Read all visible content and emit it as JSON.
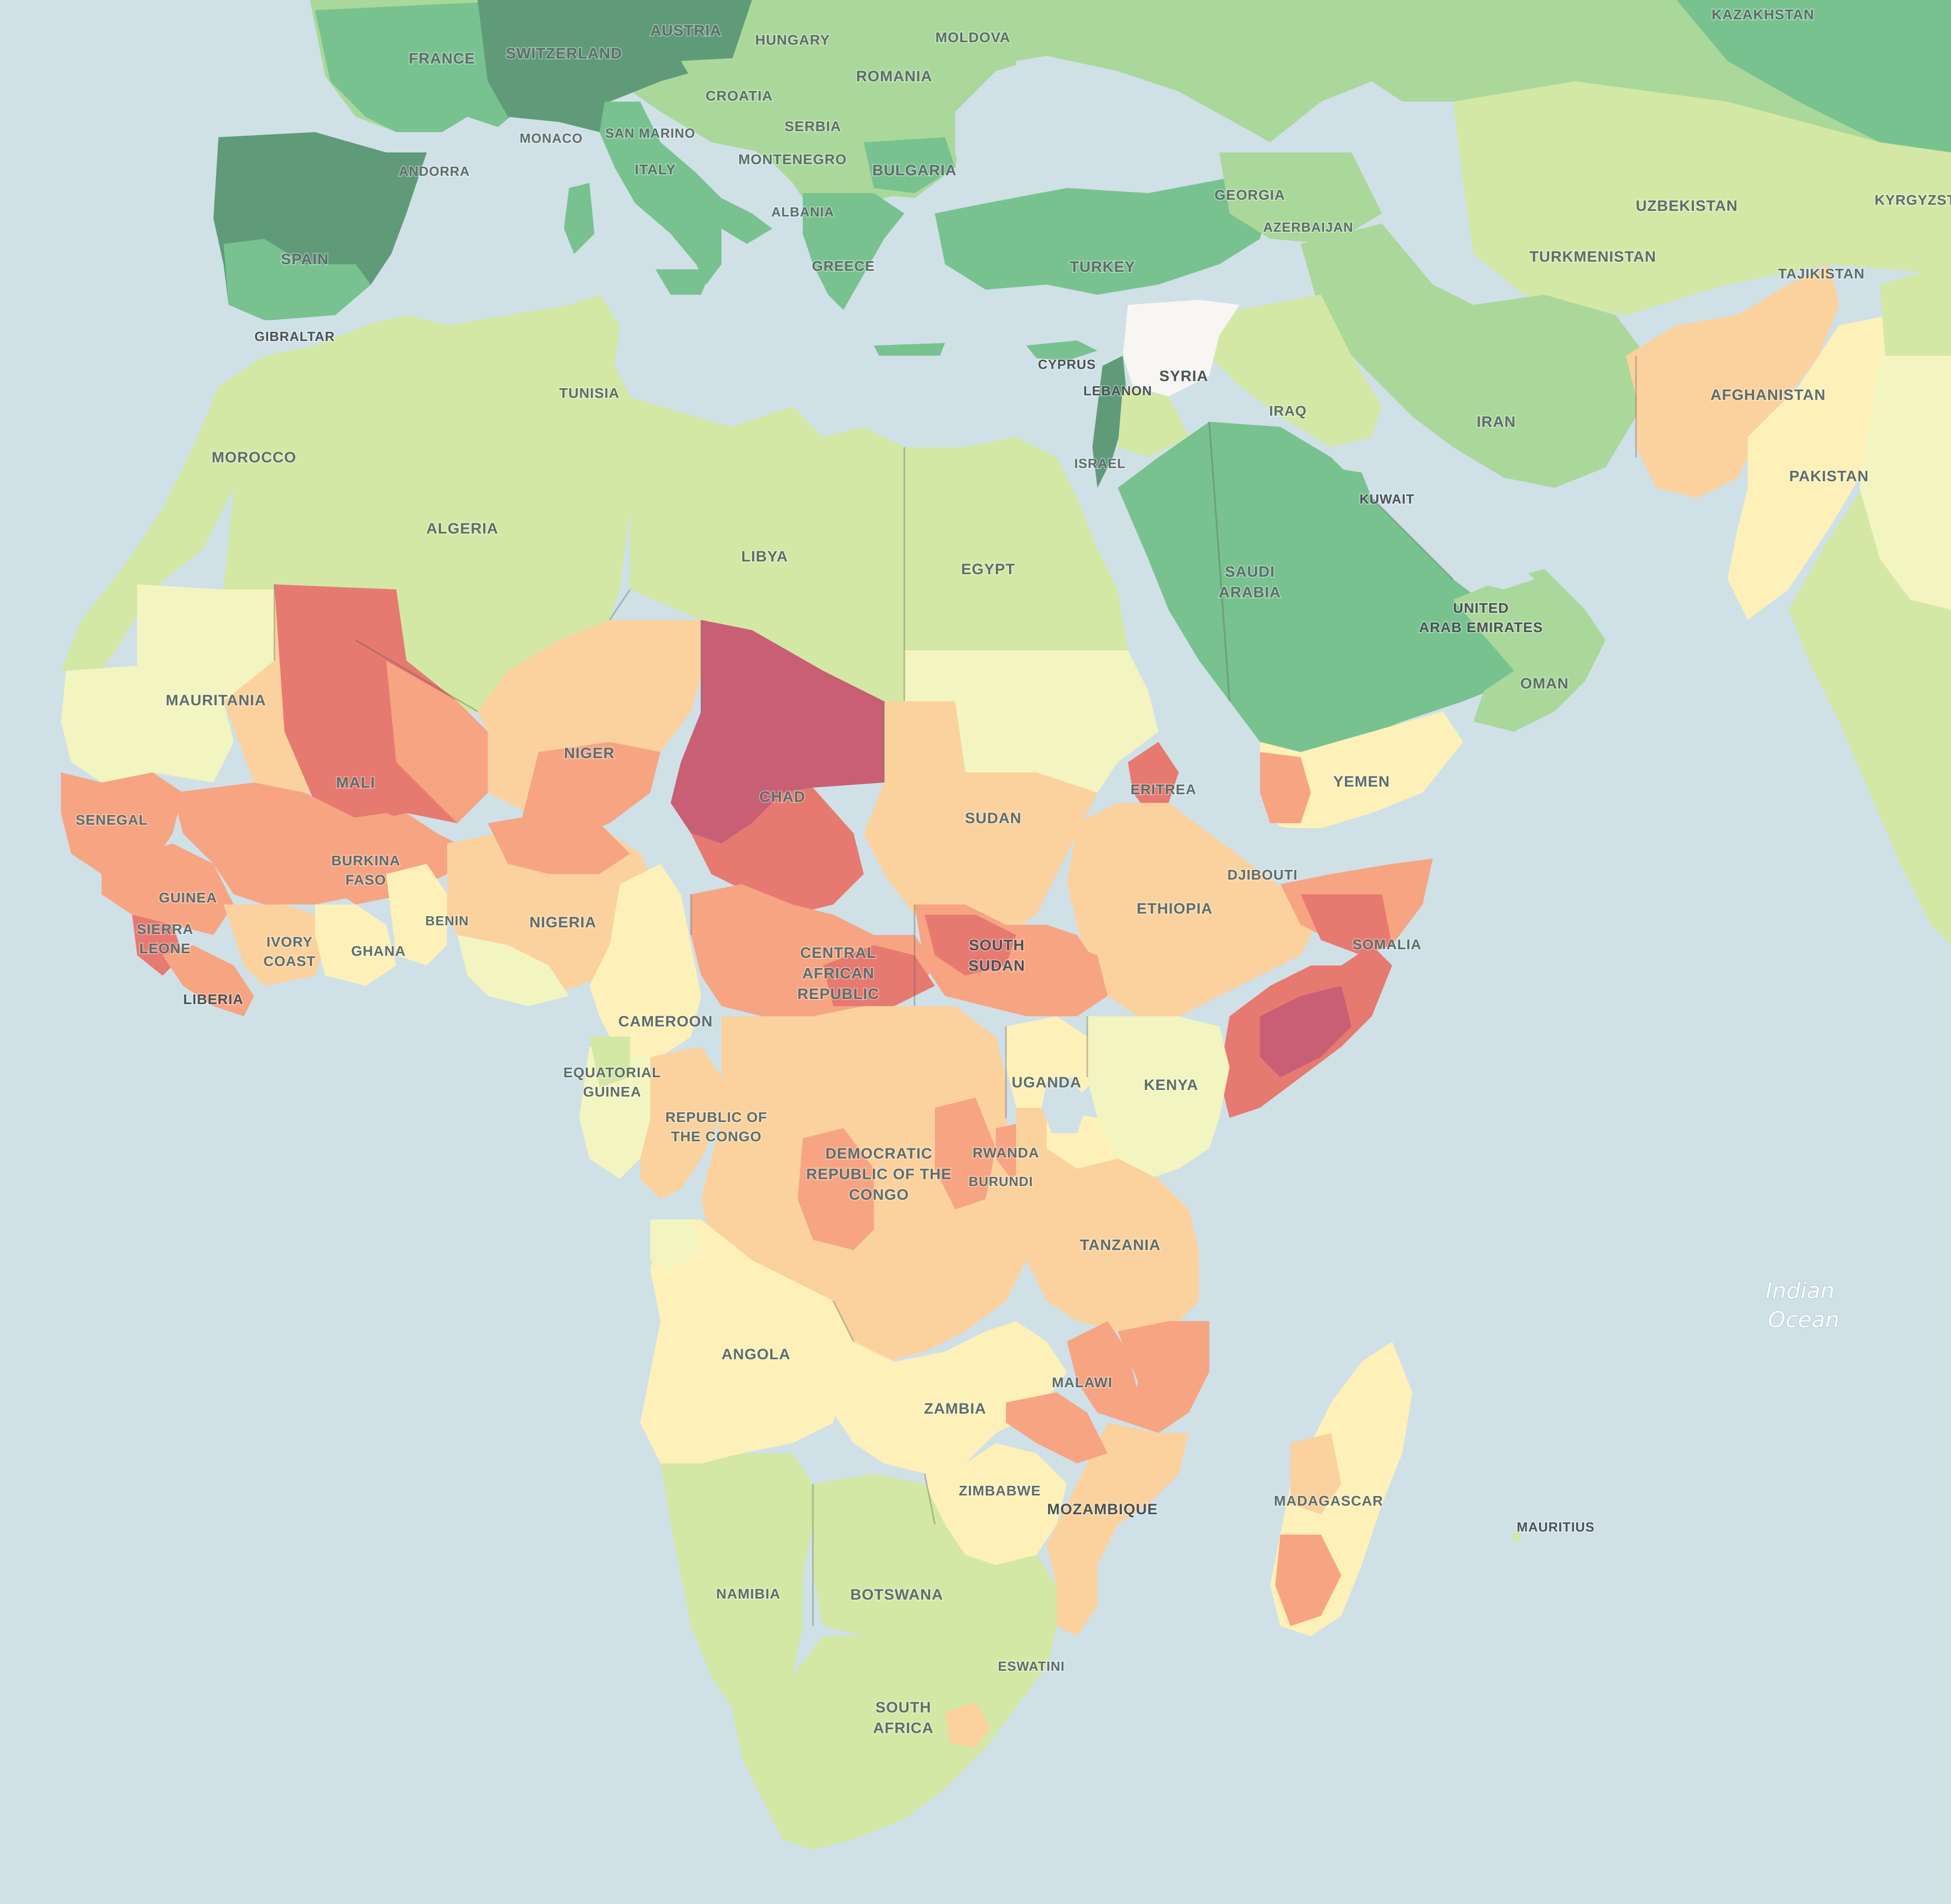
{
  "map": {
    "ocean_labels": [
      {
        "id": "indian-ocean",
        "lines": [
          "Indian",
          "Ocean"
        ]
      }
    ],
    "colors": {
      "water": "#cfe0e6",
      "dark_green": "#5f9a79",
      "green": "#78c28f",
      "mid_green": "#a9d89a",
      "light_green": "#d3e8a5",
      "pale_yellow": "#f3f5c0",
      "yellow": "#fdf0b9",
      "peach": "#fbd29e",
      "salmon": "#f7a482",
      "red": "#e67a70",
      "maroon": "#c85f75",
      "white": "#f8f6f2"
    },
    "countries": [
      {
        "id": "kazakhstan",
        "name": "KAZAKHSTAN"
      },
      {
        "id": "austria",
        "name": "AUSTRIA"
      },
      {
        "id": "hungary",
        "name": "HUNGARY"
      },
      {
        "id": "moldova",
        "name": "MOLDOVA"
      },
      {
        "id": "france",
        "name": "FRANCE"
      },
      {
        "id": "switzerland",
        "name": "SWITZERLAND"
      },
      {
        "id": "romania",
        "name": "ROMANIA"
      },
      {
        "id": "croatia",
        "name": "CROATIA"
      },
      {
        "id": "serbia",
        "name": "SERBIA"
      },
      {
        "id": "monaco",
        "name": "MONACO"
      },
      {
        "id": "san-marino",
        "name": "SAN MARINO"
      },
      {
        "id": "andorra",
        "name": "ANDORRA"
      },
      {
        "id": "italy",
        "name": "ITALY"
      },
      {
        "id": "montenegro",
        "name": "MONTENEGRO"
      },
      {
        "id": "bulgaria",
        "name": "BULGARIA"
      },
      {
        "id": "georgia",
        "name": "GEORGIA"
      },
      {
        "id": "uzbekistan",
        "name": "UZBEKISTAN"
      },
      {
        "id": "kyrgyzstan",
        "name": "KYRGYZSTAN"
      },
      {
        "id": "albania",
        "name": "ALBANIA"
      },
      {
        "id": "azerbaijan",
        "name": "AZERBAIJAN"
      },
      {
        "id": "turkmenistan",
        "name": "TURKMENISTAN"
      },
      {
        "id": "spain",
        "name": "SPAIN"
      },
      {
        "id": "greece",
        "name": "GREECE"
      },
      {
        "id": "turkey",
        "name": "TURKEY"
      },
      {
        "id": "tajikistan",
        "name": "TAJIKISTAN"
      },
      {
        "id": "gibraltar",
        "name": "GIBRALTAR"
      },
      {
        "id": "cyprus",
        "name": "CYPRUS"
      },
      {
        "id": "syria",
        "name": "SYRIA"
      },
      {
        "id": "tunisia",
        "name": "TUNISIA"
      },
      {
        "id": "lebanon",
        "name": "LEBANON"
      },
      {
        "id": "afghanistan",
        "name": "AFGHANISTAN"
      },
      {
        "id": "iraq",
        "name": "IRAQ"
      },
      {
        "id": "iran",
        "name": "IRAN"
      },
      {
        "id": "morocco",
        "name": "MOROCCO"
      },
      {
        "id": "israel",
        "name": "ISRAEL"
      },
      {
        "id": "pakistan",
        "name": "PAKISTAN"
      },
      {
        "id": "kuwait",
        "name": "KUWAIT"
      },
      {
        "id": "algeria",
        "name": "ALGERIA"
      },
      {
        "id": "libya",
        "name": "LIBYA"
      },
      {
        "id": "egypt",
        "name": "EGYPT"
      },
      {
        "id": "saudi-arabia",
        "name": "SAUDI ARABIA"
      },
      {
        "id": "uae",
        "name": "UNITED ARAB EMIRATES"
      },
      {
        "id": "oman",
        "name": "OMAN"
      },
      {
        "id": "mauritania",
        "name": "MAURITANIA"
      },
      {
        "id": "niger",
        "name": "NIGER"
      },
      {
        "id": "yemen",
        "name": "YEMEN"
      },
      {
        "id": "mali",
        "name": "MALI"
      },
      {
        "id": "eritrea",
        "name": "ERITREA"
      },
      {
        "id": "chad",
        "name": "CHAD"
      },
      {
        "id": "sudan",
        "name": "SUDAN"
      },
      {
        "id": "senegal",
        "name": "SENEGAL"
      },
      {
        "id": "burkina-faso",
        "name": "BURKINA FASO"
      },
      {
        "id": "djibouti",
        "name": "DJIBOUTI"
      },
      {
        "id": "guinea",
        "name": "GUINEA"
      },
      {
        "id": "ethiopia",
        "name": "ETHIOPIA"
      },
      {
        "id": "benin",
        "name": "BENIN"
      },
      {
        "id": "nigeria",
        "name": "NIGERIA"
      },
      {
        "id": "sierra-leone",
        "name": "SIERRA LEONE"
      },
      {
        "id": "ivory-coast",
        "name": "IVORY COAST"
      },
      {
        "id": "ghana",
        "name": "GHANA"
      },
      {
        "id": "south-sudan",
        "name": "SOUTH SUDAN"
      },
      {
        "id": "somalia",
        "name": "SOMALIA"
      },
      {
        "id": "central-african-republic",
        "name": "CENTRAL AFRICAN REPUBLIC"
      },
      {
        "id": "liberia",
        "name": "LIBERIA"
      },
      {
        "id": "cameroon",
        "name": "CAMEROON"
      },
      {
        "id": "equatorial-guinea",
        "name": "EQUATORIAL GUINEA"
      },
      {
        "id": "uganda",
        "name": "UGANDA"
      },
      {
        "id": "kenya",
        "name": "KENYA"
      },
      {
        "id": "republic-of-the-congo",
        "name": "REPUBLIC OF THE CONGO"
      },
      {
        "id": "democratic-republic-of-the-congo",
        "name": "DEMOCRATIC REPUBLIC OF THE CONGO"
      },
      {
        "id": "rwanda",
        "name": "RWANDA"
      },
      {
        "id": "burundi",
        "name": "BURUNDI"
      },
      {
        "id": "tanzania",
        "name": "TANZANIA"
      },
      {
        "id": "angola",
        "name": "ANGOLA"
      },
      {
        "id": "malawi",
        "name": "MALAWI"
      },
      {
        "id": "zambia",
        "name": "ZAMBIA"
      },
      {
        "id": "zimbabwe",
        "name": "ZIMBABWE"
      },
      {
        "id": "madagascar",
        "name": "MADAGASCAR"
      },
      {
        "id": "mozambique",
        "name": "MOZAMBIQUE"
      },
      {
        "id": "mauritius",
        "name": "MAURITIUS"
      },
      {
        "id": "namibia",
        "name": "NAMIBIA"
      },
      {
        "id": "botswana",
        "name": "BOTSWANA"
      },
      {
        "id": "eswatini",
        "name": "ESWATINI"
      },
      {
        "id": "south-africa",
        "name": "SOUTH AFRICA"
      }
    ]
  }
}
